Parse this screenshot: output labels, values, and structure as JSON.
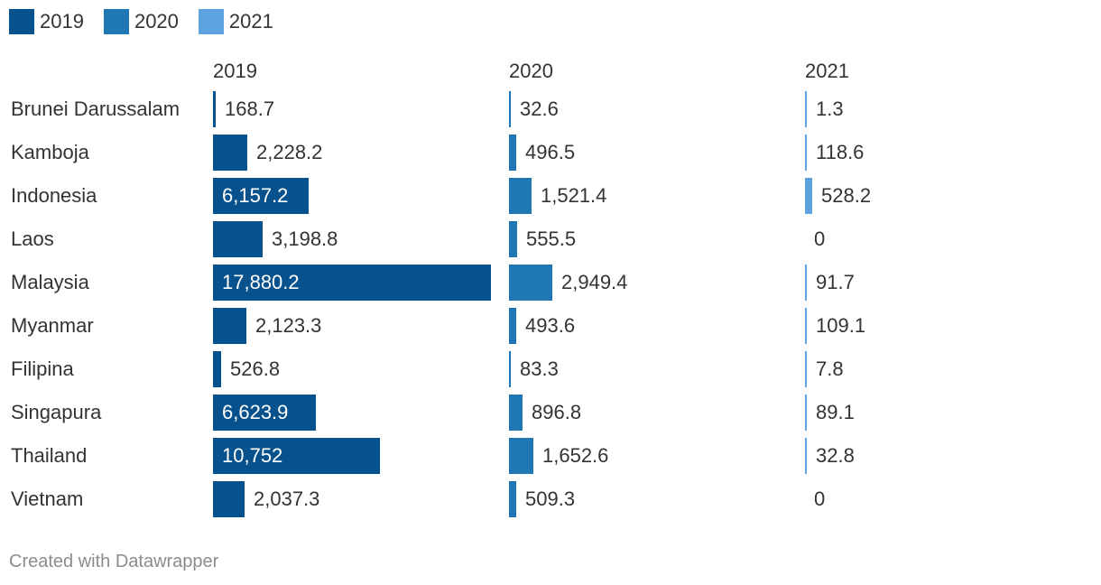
{
  "chart_data": {
    "type": "bar",
    "title": "",
    "legend": [
      {
        "name": "2019",
        "color": "#07528c"
      },
      {
        "name": "2020",
        "color": "#1f77b4"
      },
      {
        "name": "2021",
        "color": "#5ea2e0"
      }
    ],
    "categories": [
      "Brunei Darussalam",
      "Kamboja",
      "Indonesia",
      "Laos",
      "Malaysia",
      "Myanmar",
      "Filipina",
      "Singapura",
      "Thailand",
      "Vietnam"
    ],
    "series": [
      {
        "name": "2019",
        "color": "#07528c",
        "max": 17880.2,
        "values": [
          168.7,
          2228.2,
          6157.2,
          3198.8,
          17880.2,
          2123.3,
          526.8,
          6623.9,
          10752,
          2037.3
        ],
        "labels": [
          "168.7",
          "2,228.2",
          "6,157.2",
          "3,198.8",
          "17,880.2",
          "2,123.3",
          "526.8",
          "6,623.9",
          "10,752",
          "2,037.3"
        ]
      },
      {
        "name": "2020",
        "color": "#1f77b4",
        "max": 2949.4,
        "values": [
          32.6,
          496.5,
          1521.4,
          555.5,
          2949.4,
          493.6,
          83.3,
          896.8,
          1652.6,
          509.3
        ],
        "labels": [
          "32.6",
          "496.5",
          "1,521.4",
          "555.5",
          "2,949.4",
          "493.6",
          "83.3",
          "896.8",
          "1,652.6",
          "509.3"
        ]
      },
      {
        "name": "2021",
        "color": "#5ea2e0",
        "max": 528.2,
        "values": [
          1.3,
          118.6,
          528.2,
          0,
          91.7,
          109.1,
          7.8,
          89.1,
          32.8,
          0
        ],
        "labels": [
          "1.3",
          "118.6",
          "528.2",
          "0",
          "91.7",
          "109.1",
          "7.8",
          "89.1",
          "32.8",
          "0"
        ]
      }
    ]
  },
  "footer": "Created with Datawrapper"
}
